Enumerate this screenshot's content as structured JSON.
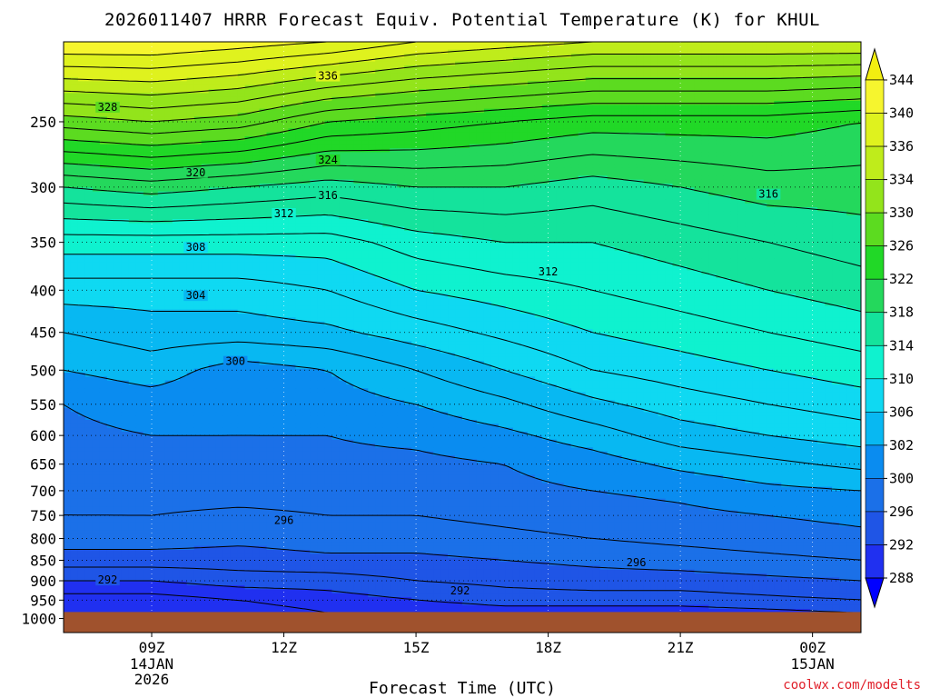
{
  "chart_data": {
    "type": "heatmap",
    "title": "2026011407 HRRR Forecast Equiv. Potential Temperature (K) for KHUL",
    "xlabel": "Forecast Time (UTC)",
    "ylabel": "",
    "x_ticks": [
      {
        "label": "09Z",
        "sub": [
          "14JAN",
          "2026"
        ],
        "hour": 9
      },
      {
        "label": "12Z",
        "sub": [],
        "hour": 12
      },
      {
        "label": "15Z",
        "sub": [],
        "hour": 15
      },
      {
        "label": "18Z",
        "sub": [],
        "hour": 18
      },
      {
        "label": "21Z",
        "sub": [],
        "hour": 21
      },
      {
        "label": "00Z",
        "sub": [
          "15JAN"
        ],
        "hour": 24
      }
    ],
    "x_range": [
      7,
      25.1
    ],
    "y_ticks": [
      250,
      300,
      350,
      400,
      450,
      500,
      550,
      600,
      650,
      700,
      750,
      800,
      850,
      900,
      950,
      1000
    ],
    "y_range_hpa": [
      200,
      1040
    ],
    "surface_pressure_hpa": 982,
    "colorbar": {
      "levels": [
        344,
        340,
        336,
        334,
        330,
        326,
        322,
        318,
        314,
        310,
        306,
        302,
        300,
        296,
        292,
        288
      ],
      "colors": [
        "#f2ee10",
        "#f6f52e",
        "#dff21e",
        "#bfec1b",
        "#93e41b",
        "#5cdb20",
        "#21d827",
        "#24d85c",
        "#14e39c",
        "#0ff2cf",
        "#0fd9f2",
        "#08b8f2",
        "#0a8cf0",
        "#1b70e8",
        "#1f55e6",
        "#2030f0",
        "#0000ff"
      ]
    },
    "contour_levels": [
      288,
      290,
      292,
      294,
      296,
      298,
      300,
      302,
      304,
      306,
      308,
      310,
      312,
      314,
      316,
      318,
      320,
      322,
      324,
      326,
      328,
      330,
      332,
      334,
      336,
      338,
      340
    ],
    "theta_e_profiles": [
      {
        "hour": 7.0,
        "p": [
          200,
          250,
          300,
          350,
          400,
          450,
          500,
          550,
          600,
          650,
          700,
          750,
          800,
          850,
          900,
          950,
          982
        ],
        "theta_e": [
          342,
          329,
          318,
          311,
          307,
          304,
          302,
          300,
          299.5,
          299,
          298.5,
          298,
          297,
          295,
          292,
          289,
          288
        ]
      },
      {
        "hour": 9.0,
        "p": [
          200,
          250,
          300,
          350,
          400,
          450,
          500,
          550,
          600,
          650,
          700,
          750,
          800,
          850,
          900,
          950,
          982
        ],
        "theta_e": [
          342,
          330,
          319,
          311,
          307,
          305,
          303,
          301,
          300,
          299.5,
          299,
          298,
          297,
          295,
          292,
          289,
          288
        ]
      },
      {
        "hour": 11.0,
        "p": [
          200,
          250,
          300,
          350,
          400,
          450,
          500,
          550,
          600,
          650,
          700,
          750,
          800,
          850,
          900,
          950,
          982
        ],
        "theta_e": [
          341,
          329,
          318,
          311,
          307,
          305,
          301,
          300.5,
          300,
          299.5,
          299,
          297.5,
          296.5,
          295,
          293,
          290,
          289
        ]
      },
      {
        "hour": 13.0,
        "p": [
          200,
          250,
          300,
          350,
          400,
          450,
          500,
          550,
          600,
          650,
          700,
          750,
          800,
          850,
          900,
          950,
          982
        ],
        "theta_e": [
          340,
          326,
          317,
          311,
          308,
          305.5,
          302,
          301,
          300,
          299.5,
          299,
          298,
          297,
          295.5,
          293,
          291,
          290
        ]
      },
      {
        "hour": 15.0,
        "p": [
          200,
          250,
          300,
          350,
          400,
          450,
          500,
          550,
          600,
          650,
          700,
          750,
          800,
          850,
          900,
          950,
          982
        ],
        "theta_e": [
          338,
          325,
          318,
          313,
          310,
          307,
          304,
          302,
          300.5,
          299.5,
          299,
          298,
          297,
          295.5,
          294,
          292,
          290
        ]
      },
      {
        "hour": 17.0,
        "p": [
          200,
          250,
          300,
          350,
          400,
          450,
          500,
          550,
          600,
          650,
          700,
          750,
          800,
          850,
          900,
          950,
          982
        ],
        "theta_e": [
          337,
          324,
          318,
          314,
          311,
          308.5,
          306,
          303.5,
          301.5,
          300,
          299.5,
          298.5,
          297.5,
          296,
          294.5,
          293,
          291
        ]
      },
      {
        "hour": 19.0,
        "p": [
          200,
          250,
          300,
          350,
          400,
          450,
          500,
          550,
          600,
          650,
          700,
          750,
          800,
          850,
          900,
          950,
          982
        ],
        "theta_e": [
          336,
          323,
          317,
          314,
          312,
          310,
          308,
          305.5,
          303,
          301,
          300,
          299,
          298,
          296.5,
          295,
          293,
          291
        ]
      },
      {
        "hour": 21.0,
        "p": [
          200,
          250,
          300,
          350,
          400,
          450,
          500,
          550,
          600,
          650,
          700,
          750,
          800,
          850,
          900,
          950,
          982
        ],
        "theta_e": [
          336,
          323,
          318,
          315,
          313,
          311,
          309,
          307,
          305,
          302.5,
          300.5,
          299.5,
          298.5,
          297,
          295,
          293,
          291
        ]
      },
      {
        "hour": 23.0,
        "p": [
          200,
          250,
          300,
          350,
          400,
          450,
          500,
          550,
          600,
          650,
          700,
          750,
          800,
          850,
          900,
          950,
          982
        ],
        "theta_e": [
          336,
          323,
          319,
          316,
          314,
          312,
          310,
          308,
          306,
          303.5,
          301.5,
          300,
          299,
          297.5,
          295.5,
          293.5,
          291.5
        ]
      },
      {
        "hour": 25.1,
        "p": [
          200,
          250,
          300,
          350,
          400,
          450,
          500,
          550,
          600,
          650,
          700,
          750,
          800,
          850,
          900,
          950,
          982
        ],
        "theta_e": [
          336,
          322,
          319,
          317,
          315,
          313,
          311,
          309,
          307,
          304.5,
          302,
          300.5,
          299.5,
          298,
          296,
          294,
          292
        ]
      }
    ],
    "contour_labels": [
      {
        "text": "336",
        "hour": 13.0,
        "p": 220
      },
      {
        "text": "328",
        "hour": 8.0,
        "p": 240
      },
      {
        "text": "324",
        "hour": 13.0,
        "p": 278
      },
      {
        "text": "320",
        "hour": 10.0,
        "p": 288
      },
      {
        "text": "316",
        "hour": 13.0,
        "p": 307
      },
      {
        "text": "316",
        "hour": 23.0,
        "p": 306
      },
      {
        "text": "312",
        "hour": 12.0,
        "p": 323
      },
      {
        "text": "312",
        "hour": 18.0,
        "p": 380
      },
      {
        "text": "308",
        "hour": 10.0,
        "p": 355
      },
      {
        "text": "304",
        "hour": 10.0,
        "p": 406
      },
      {
        "text": "300",
        "hour": 10.9,
        "p": 488
      },
      {
        "text": "296",
        "hour": 12.0,
        "p": 760
      },
      {
        "text": "296",
        "hour": 20.0,
        "p": 856
      },
      {
        "text": "292",
        "hour": 8.0,
        "p": 898
      },
      {
        "text": "292",
        "hour": 16.0,
        "p": 925
      }
    ]
  },
  "credit": "coolwx.com/modelts"
}
